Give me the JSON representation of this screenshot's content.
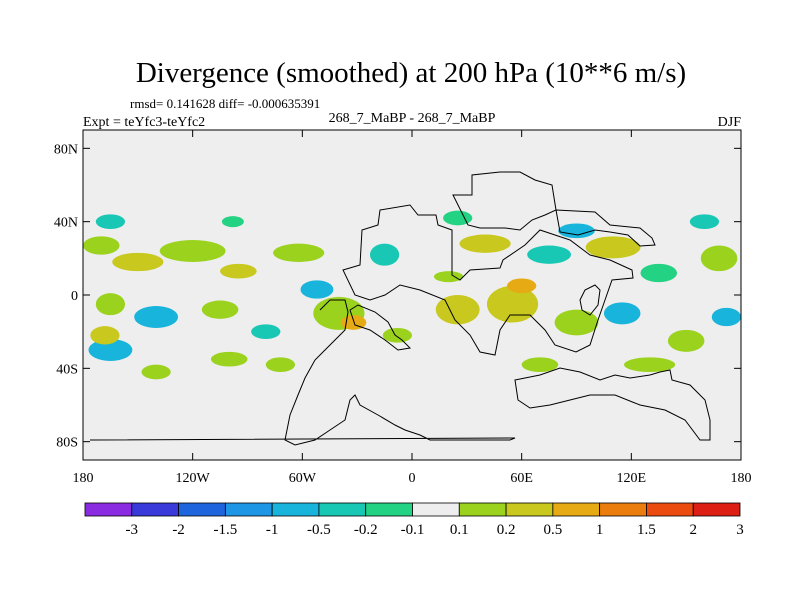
{
  "chart_data": {
    "type": "heatmap",
    "title": "Divergence (smoothed) at 200 hPa (10**6 m/s)",
    "stats": "rmsd= 0.141628  diff= -0.000635391",
    "left_label": "Expt = teYfc3-teYfc2",
    "center_label": "268_7_MaBP - 268_7_MaBP",
    "right_label": "DJF",
    "xlim": [
      -180,
      180
    ],
    "ylim": [
      -90,
      90
    ],
    "x_ticks": [
      {
        "value": -180,
        "label": "180"
      },
      {
        "value": -120,
        "label": "120W"
      },
      {
        "value": -60,
        "label": "60W"
      },
      {
        "value": 0,
        "label": "0"
      },
      {
        "value": 60,
        "label": "60E"
      },
      {
        "value": 120,
        "label": "120E"
      },
      {
        "value": 180,
        "label": "180"
      }
    ],
    "y_ticks": [
      {
        "value": 80,
        "label": "80N"
      },
      {
        "value": 40,
        "label": "40N"
      },
      {
        "value": 0,
        "label": "0"
      },
      {
        "value": -40,
        "label": "40S"
      },
      {
        "value": -80,
        "label": "80S"
      }
    ],
    "colorbar": {
      "levels": [
        "-3",
        "-2",
        "-1.5",
        "-1",
        "-0.5",
        "-0.2",
        "-0.1",
        "0.1",
        "0.2",
        "0.5",
        "1",
        "1.5",
        "2",
        "3"
      ],
      "colors": [
        "#8a2be2",
        "#3a3adb",
        "#1e64dc",
        "#1e96e6",
        "#19b4dc",
        "#19c8b4",
        "#23d282",
        "#eeeeee",
        "#9bd21e",
        "#c8c81e",
        "#e6aa14",
        "#eb7d0f",
        "#eb4b0f",
        "#dc1e14"
      ]
    },
    "blobs": [
      {
        "lon": -170,
        "lat": 27,
        "rlon": 10,
        "rlat": 5,
        "color": "#9bd21e"
      },
      {
        "lon": -150,
        "lat": 18,
        "rlon": 14,
        "rlat": 5,
        "color": "#c8c81e"
      },
      {
        "lon": -120,
        "lat": 24,
        "rlon": 18,
        "rlat": 6,
        "color": "#9bd21e"
      },
      {
        "lon": -95,
        "lat": 13,
        "rlon": 10,
        "rlat": 4,
        "color": "#c8c81e"
      },
      {
        "lon": -62,
        "lat": 23,
        "rlon": 14,
        "rlat": 5,
        "color": "#9bd21e"
      },
      {
        "lon": -52,
        "lat": 3,
        "rlon": 9,
        "rlat": 5,
        "color": "#19b4dc"
      },
      {
        "lon": -40,
        "lat": -10,
        "rlon": 14,
        "rlat": 9,
        "color": "#9bd21e"
      },
      {
        "lon": -32,
        "lat": -15,
        "rlon": 7,
        "rlat": 4,
        "color": "#e6aa14"
      },
      {
        "lon": -15,
        "lat": 22,
        "rlon": 8,
        "rlat": 6,
        "color": "#19c8b4"
      },
      {
        "lon": 20,
        "lat": 10,
        "rlon": 8,
        "rlat": 3,
        "color": "#9bd21e"
      },
      {
        "lon": 40,
        "lat": 28,
        "rlon": 14,
        "rlat": 5,
        "color": "#c8c81e"
      },
      {
        "lon": 75,
        "lat": 22,
        "rlon": 12,
        "rlat": 5,
        "color": "#19c8b4"
      },
      {
        "lon": 110,
        "lat": 26,
        "rlon": 15,
        "rlat": 6,
        "color": "#c8c81e"
      },
      {
        "lon": 135,
        "lat": 12,
        "rlon": 10,
        "rlat": 5,
        "color": "#23d282"
      },
      {
        "lon": 168,
        "lat": 20,
        "rlon": 10,
        "rlat": 7,
        "color": "#9bd21e"
      },
      {
        "lon": -165,
        "lat": -5,
        "rlon": 8,
        "rlat": 6,
        "color": "#9bd21e"
      },
      {
        "lon": -140,
        "lat": -12,
        "rlon": 12,
        "rlat": 6,
        "color": "#19b4dc"
      },
      {
        "lon": -105,
        "lat": -8,
        "rlon": 10,
        "rlat": 5,
        "color": "#9bd21e"
      },
      {
        "lon": -80,
        "lat": -20,
        "rlon": 8,
        "rlat": 4,
        "color": "#19c8b4"
      },
      {
        "lon": -8,
        "lat": -22,
        "rlon": 8,
        "rlat": 4,
        "color": "#9bd21e"
      },
      {
        "lon": 25,
        "lat": -8,
        "rlon": 12,
        "rlat": 8,
        "color": "#c8c81e"
      },
      {
        "lon": 55,
        "lat": -5,
        "rlon": 14,
        "rlat": 10,
        "color": "#c8c81e"
      },
      {
        "lon": 60,
        "lat": 5,
        "rlon": 8,
        "rlat": 4,
        "color": "#e6aa14"
      },
      {
        "lon": 90,
        "lat": -15,
        "rlon": 12,
        "rlat": 7,
        "color": "#9bd21e"
      },
      {
        "lon": 115,
        "lat": -10,
        "rlon": 10,
        "rlat": 6,
        "color": "#19b4dc"
      },
      {
        "lon": 150,
        "lat": -25,
        "rlon": 10,
        "rlat": 6,
        "color": "#9bd21e"
      },
      {
        "lon": 172,
        "lat": -12,
        "rlon": 8,
        "rlat": 5,
        "color": "#19b4dc"
      },
      {
        "lon": -165,
        "lat": -30,
        "rlon": 12,
        "rlat": 6,
        "color": "#19b4dc"
      },
      {
        "lon": -140,
        "lat": -42,
        "rlon": 8,
        "rlat": 4,
        "color": "#9bd21e"
      },
      {
        "lon": -100,
        "lat": -35,
        "rlon": 10,
        "rlat": 4,
        "color": "#9bd21e"
      },
      {
        "lon": -72,
        "lat": -38,
        "rlon": 8,
        "rlat": 4,
        "color": "#9bd21e"
      },
      {
        "lon": -168,
        "lat": -22,
        "rlon": 8,
        "rlat": 5,
        "color": "#c8c81e"
      },
      {
        "lon": 70,
        "lat": -38,
        "rlon": 10,
        "rlat": 4,
        "color": "#9bd21e"
      },
      {
        "lon": 130,
        "lat": -38,
        "rlon": 14,
        "rlat": 4,
        "color": "#9bd21e"
      },
      {
        "lon": 160,
        "lat": 40,
        "rlon": 8,
        "rlat": 4,
        "color": "#19c8b4"
      },
      {
        "lon": -165,
        "lat": 40,
        "rlon": 8,
        "rlat": 4,
        "color": "#19c8b4"
      },
      {
        "lon": 25,
        "lat": 42,
        "rlon": 8,
        "rlat": 4,
        "color": "#23d282"
      },
      {
        "lon": -98,
        "lat": 40,
        "rlon": 6,
        "rlat": 3,
        "color": "#23d282"
      },
      {
        "lon": 90,
        "lat": 35,
        "rlon": 10,
        "rlat": 4,
        "color": "#19b4dc"
      }
    ]
  }
}
